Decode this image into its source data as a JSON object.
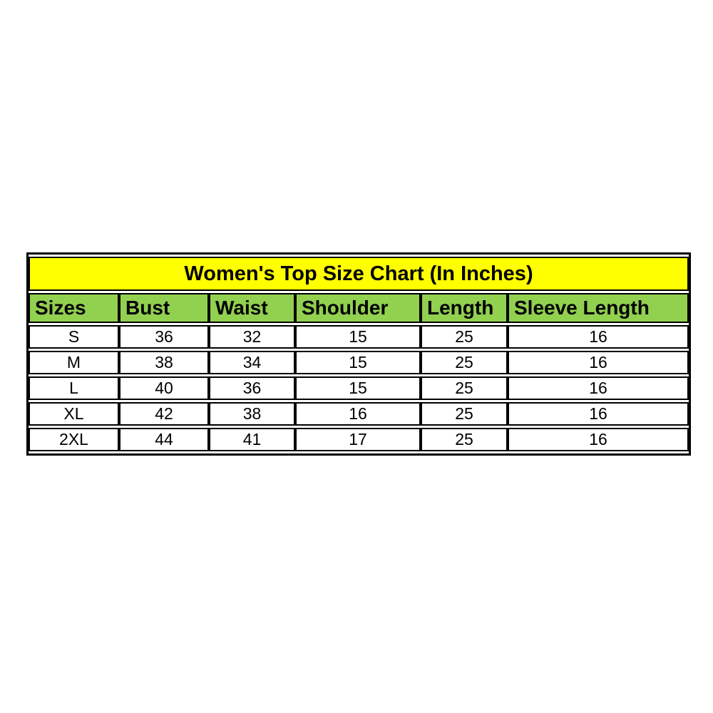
{
  "page": {
    "background_color": "#ffffff",
    "text_color": "#000000"
  },
  "colors": {
    "title_background": "#FFFF00",
    "header_background": "#92D050",
    "border": "#000000"
  },
  "chart_data": {
    "type": "table",
    "title": "Women's Top Size Chart (In Inches)",
    "columns": [
      "Sizes",
      "Bust",
      "Waist",
      "Shoulder",
      "Length",
      "Sleeve Length"
    ],
    "rows": [
      [
        "S",
        "36",
        "32",
        "15",
        "25",
        "16"
      ],
      [
        "M",
        "38",
        "34",
        "15",
        "25",
        "16"
      ],
      [
        "L",
        "40",
        "36",
        "15",
        "25",
        "16"
      ],
      [
        "XL",
        "42",
        "38",
        "16",
        "25",
        "16"
      ],
      [
        "2XL",
        "44",
        "41",
        "17",
        "25",
        "16"
      ]
    ],
    "units": "inches",
    "layout": {
      "title_row_align": "center",
      "header_align": "left",
      "data_align": "center",
      "grid": true
    }
  }
}
